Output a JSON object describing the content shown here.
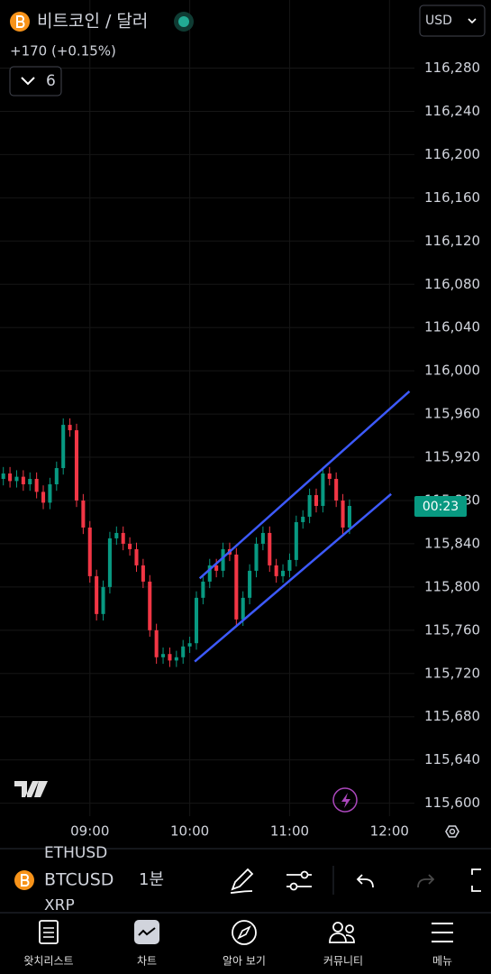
{
  "header": {
    "title": "비트코인 / 달러",
    "currency": "USD",
    "change": "+170 (+0.15%)",
    "interval_count": 6
  },
  "chart_data": {
    "type": "candlestick",
    "x": [
      488,
      492,
      496,
      500,
      504,
      508,
      512,
      516,
      520,
      524,
      528,
      532,
      536,
      540,
      544,
      548,
      552,
      556,
      560,
      564,
      568,
      572,
      576,
      580,
      584,
      588,
      592,
      596,
      600,
      604,
      608,
      612,
      616,
      620,
      624,
      628,
      632,
      636,
      640,
      644,
      648,
      652,
      656,
      660,
      664,
      668,
      672,
      676,
      680,
      684,
      688,
      692,
      696
    ],
    "open": [
      115900,
      115905,
      115898,
      115902,
      115895,
      115900,
      115888,
      115878,
      115895,
      115910,
      115950,
      115945,
      115880,
      115855,
      115810,
      115775,
      115800,
      115845,
      115850,
      115840,
      115835,
      115820,
      115805,
      115760,
      115735,
      115738,
      115732,
      115735,
      115745,
      115748,
      115790,
      115805,
      115820,
      115815,
      115835,
      115830,
      115770,
      115790,
      115815,
      115840,
      115850,
      115820,
      115810,
      115815,
      115825,
      115860,
      115865,
      115885,
      115875,
      115905,
      115900,
      115880,
      115855
    ],
    "high": [
      115911,
      115911,
      115908,
      115908,
      115906,
      115906,
      115894,
      115901,
      115916,
      115956,
      115956,
      115951,
      115886,
      115861,
      115816,
      115806,
      115851,
      115856,
      115856,
      115846,
      115841,
      115826,
      115811,
      115766,
      115744,
      115744,
      115741,
      115751,
      115754,
      115796,
      115811,
      115826,
      115826,
      115841,
      115841,
      115836,
      115796,
      115821,
      115846,
      115856,
      115856,
      115826,
      115821,
      115831,
      115866,
      115871,
      115891,
      115891,
      115911,
      115911,
      115906,
      115886,
      115881
    ],
    "low": [
      115894,
      115892,
      115892,
      115889,
      115889,
      115882,
      115872,
      115872,
      115889,
      115904,
      115939,
      115874,
      115849,
      115804,
      115769,
      115769,
      115794,
      115839,
      115834,
      115829,
      115814,
      115799,
      115754,
      115729,
      115729,
      115726,
      115726,
      115729,
      115739,
      115742,
      115784,
      115799,
      115809,
      115809,
      115824,
      115764,
      115764,
      115784,
      115809,
      115834,
      115814,
      115804,
      115804,
      115809,
      115819,
      115854,
      115859,
      115869,
      115869,
      115894,
      115874,
      115849,
      115849
    ],
    "close": [
      115905,
      115898,
      115902,
      115895,
      115900,
      115888,
      115878,
      115895,
      115910,
      115950,
      115945,
      115880,
      115855,
      115810,
      115775,
      115800,
      115845,
      115850,
      115840,
      115835,
      115820,
      115805,
      115760,
      115735,
      115738,
      115732,
      115735,
      115745,
      115748,
      115790,
      115805,
      115820,
      115815,
      115835,
      115830,
      115770,
      115790,
      115815,
      115840,
      115850,
      115820,
      115810,
      115815,
      115825,
      115860,
      115865,
      115885,
      115875,
      115905,
      115900,
      115880,
      115855,
      115875
    ],
    "up_color": "#089981",
    "down_color": "#f23645",
    "xlim": [
      486,
      735
    ],
    "xticks": [
      {
        "value": 540,
        "label": "09:00"
      },
      {
        "value": 600,
        "label": "10:00"
      },
      {
        "value": 660,
        "label": "11:00"
      },
      {
        "value": 720,
        "label": "12:00"
      }
    ],
    "ylim": [
      115588,
      116343
    ],
    "yticks": [
      {
        "value": 116280,
        "label": "116,280"
      },
      {
        "value": 116240,
        "label": "116,240"
      },
      {
        "value": 116200,
        "label": "116,200"
      },
      {
        "value": 116160,
        "label": "116,160"
      },
      {
        "value": 116120,
        "label": "116,120"
      },
      {
        "value": 116080,
        "label": "116,080"
      },
      {
        "value": 116040,
        "label": "116,040"
      },
      {
        "value": 116000,
        "label": "116,000"
      },
      {
        "value": 115960,
        "label": "115,960"
      },
      {
        "value": 115920,
        "label": "115,920"
      },
      {
        "value": 115880,
        "label": "115,880"
      },
      {
        "value": 115840,
        "label": "115,840"
      },
      {
        "value": 115800,
        "label": "115,800"
      },
      {
        "value": 115760,
        "label": "115,760"
      },
      {
        "value": 115720,
        "label": "115,720"
      },
      {
        "value": 115680,
        "label": "115,680"
      },
      {
        "value": 115640,
        "label": "115,640"
      },
      {
        "value": 115600,
        "label": "115,600"
      }
    ],
    "grid": true,
    "countdown": "00:23",
    "drawings": [
      {
        "color": "#3d5afe",
        "x": [
          606,
          732
        ],
        "y": [
          115808,
          115981
        ]
      },
      {
        "color": "#3d5afe",
        "x": [
          603,
          721
        ],
        "y": [
          115731,
          115886
        ]
      }
    ]
  },
  "toolbar": {
    "symbol": "BTCUSD",
    "interval": "1분",
    "prev_symbol": "ETHUSD",
    "next_symbol": "XRP"
  },
  "nav": [
    "왓치리스트",
    "차트",
    "알아 보기",
    "커뮤니티",
    "메뉴"
  ]
}
